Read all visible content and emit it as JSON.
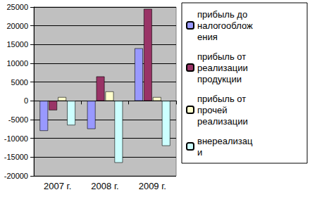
{
  "chart_data": {
    "type": "bar",
    "categories": [
      "2007 г.",
      "2008 г.",
      "2009 г."
    ],
    "series": [
      {
        "name": "прибыль до налогообложения",
        "color": "#9999ff",
        "values": [
          -8000,
          -7500,
          14000
        ]
      },
      {
        "name": "прибыль от реализации продукции",
        "color": "#993366",
        "values": [
          -2500,
          6500,
          24500
        ]
      },
      {
        "name": "прибыль от прочей реализации",
        "color": "#ffffcc",
        "values": [
          1000,
          2500,
          1000
        ]
      },
      {
        "name": "внереализаци",
        "color": "#ccffff",
        "values": [
          -6500,
          -16500,
          -12000
        ]
      }
    ],
    "ylim": [
      -20000,
      25000
    ],
    "yticks": [
      -20000,
      -15000,
      -10000,
      -5000,
      0,
      5000,
      10000,
      15000,
      20000,
      25000
    ],
    "grid": true,
    "legend": "right"
  }
}
